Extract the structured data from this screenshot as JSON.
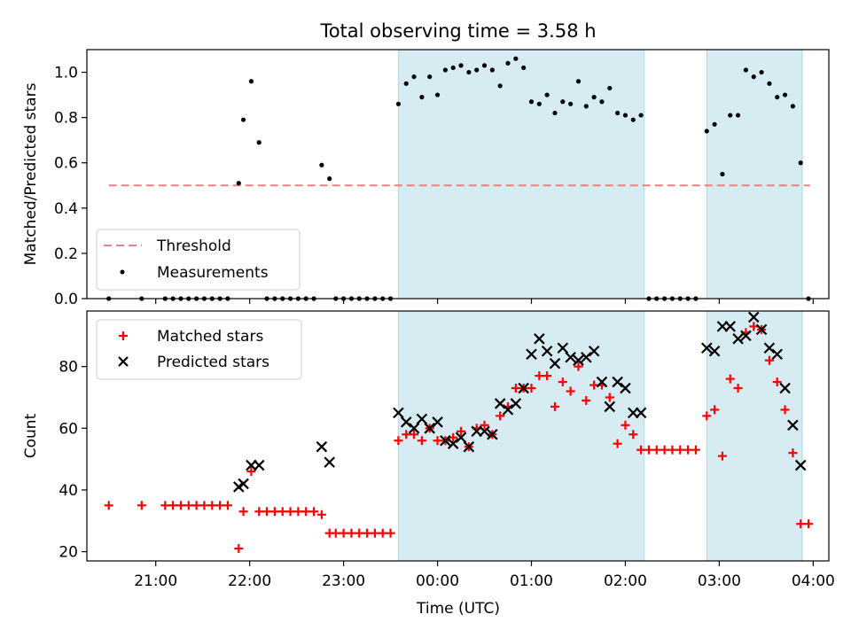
{
  "title": "Total observing time = 3.58 h",
  "chart_data": [
    {
      "type": "scatter",
      "ylabel": "Matched/Predicted stars",
      "ylim": [
        0,
        1.1
      ],
      "yticks": [
        0.0,
        0.2,
        0.4,
        0.6,
        0.8,
        1.0
      ],
      "ytick_labels": [
        "0.0",
        "0.2",
        "0.4",
        "0.6",
        "0.8",
        "1.0"
      ],
      "xlim": [
        "20:16",
        "04:10"
      ],
      "grid": false,
      "legend_position": "lower-left",
      "observing_windows": [
        {
          "start": "23:35",
          "end": "02:12"
        },
        {
          "start": "02:52",
          "end": "03:53"
        }
      ],
      "threshold": {
        "name": "Threshold",
        "value": 0.5,
        "x": [
          "20:30",
          "03:58"
        ],
        "color": "#f08080",
        "style": "dashed"
      },
      "series": [
        {
          "name": "Measurements",
          "marker": "dot",
          "color": "#000000",
          "x": [
            "20:30",
            "20:51",
            "21:06",
            "21:11",
            "21:16",
            "21:21",
            "21:26",
            "21:31",
            "21:36",
            "21:41",
            "21:46",
            "21:53",
            "21:56",
            "22:01",
            "22:06",
            "22:11",
            "22:16",
            "22:21",
            "22:26",
            "22:31",
            "22:36",
            "22:41",
            "22:46",
            "22:51",
            "22:55",
            "23:00",
            "23:05",
            "23:10",
            "23:15",
            "23:20",
            "23:25",
            "23:30",
            "23:35",
            "23:40",
            "23:45",
            "23:50",
            "23:55",
            "00:00",
            "00:05",
            "00:10",
            "00:15",
            "00:20",
            "00:25",
            "00:30",
            "00:35",
            "00:40",
            "00:45",
            "00:50",
            "00:55",
            "01:00",
            "01:05",
            "01:10",
            "01:15",
            "01:20",
            "01:25",
            "01:30",
            "01:35",
            "01:40",
            "01:45",
            "01:50",
            "01:55",
            "02:00",
            "02:05",
            "02:10",
            "02:15",
            "02:20",
            "02:25",
            "02:30",
            "02:35",
            "02:40",
            "02:45",
            "02:52",
            "02:57",
            "03:02",
            "03:07",
            "03:12",
            "03:17",
            "03:22",
            "03:27",
            "03:32",
            "03:37",
            "03:42",
            "03:47",
            "03:52",
            "03:57"
          ],
          "y": [
            0,
            0,
            0,
            0,
            0,
            0,
            0,
            0,
            0,
            0,
            0,
            0.51,
            0.79,
            0.96,
            0.69,
            0,
            0,
            0,
            0,
            0,
            0,
            0,
            0.59,
            0.53,
            0,
            0,
            0,
            0,
            0,
            0,
            0,
            0,
            0.86,
            0.95,
            0.98,
            0.89,
            0.98,
            0.9,
            1.01,
            1.02,
            1.03,
            1.0,
            1.01,
            1.03,
            1.01,
            0.94,
            1.04,
            1.06,
            1.02,
            0.87,
            0.86,
            0.9,
            0.82,
            0.87,
            0.86,
            0.96,
            0.85,
            0.89,
            0.87,
            0.93,
            0.82,
            0.81,
            0.79,
            0.81,
            0,
            0,
            0,
            0,
            0,
            0,
            0,
            0.74,
            0.77,
            0.55,
            0.81,
            0.81,
            1.01,
            0.98,
            1.0,
            0.95,
            0.89,
            0.9,
            0.85,
            0.6,
            0
          ]
        }
      ]
    },
    {
      "type": "scatter",
      "xlabel": "Time (UTC)",
      "ylabel": "Count",
      "ylim": [
        17,
        98
      ],
      "yticks": [
        20,
        40,
        60,
        80
      ],
      "ytick_labels": [
        "20",
        "40",
        "60",
        "80"
      ],
      "xlim": [
        "20:16",
        "04:10"
      ],
      "xtick_labels": [
        "21:00",
        "22:00",
        "23:00",
        "00:00",
        "01:00",
        "02:00",
        "03:00",
        "04:00"
      ],
      "grid": false,
      "legend_position": "upper-left",
      "observing_windows": [
        {
          "start": "23:35",
          "end": "02:12"
        },
        {
          "start": "02:52",
          "end": "03:53"
        }
      ],
      "series": [
        {
          "name": "Matched stars",
          "marker": "plus",
          "color": "#ff0000",
          "x": [
            "20:30",
            "20:51",
            "21:06",
            "21:11",
            "21:16",
            "21:21",
            "21:26",
            "21:31",
            "21:36",
            "21:41",
            "21:46",
            "21:53",
            "21:56",
            "22:01",
            "22:06",
            "22:11",
            "22:16",
            "22:21",
            "22:26",
            "22:31",
            "22:36",
            "22:41",
            "22:46",
            "22:51",
            "22:55",
            "23:00",
            "23:05",
            "23:10",
            "23:15",
            "23:20",
            "23:25",
            "23:30",
            "23:35",
            "23:40",
            "23:45",
            "23:50",
            "23:55",
            "00:00",
            "00:05",
            "00:10",
            "00:15",
            "00:20",
            "00:25",
            "00:30",
            "00:35",
            "00:40",
            "00:45",
            "00:50",
            "00:55",
            "01:00",
            "01:05",
            "01:10",
            "01:15",
            "01:20",
            "01:25",
            "01:30",
            "01:35",
            "01:40",
            "01:45",
            "01:50",
            "01:55",
            "02:00",
            "02:05",
            "02:10",
            "02:15",
            "02:20",
            "02:25",
            "02:30",
            "02:35",
            "02:40",
            "02:45",
            "02:52",
            "02:57",
            "03:02",
            "03:07",
            "03:12",
            "03:17",
            "03:22",
            "03:27",
            "03:32",
            "03:37",
            "03:42",
            "03:47",
            "03:52",
            "03:57"
          ],
          "y": [
            35,
            35,
            35,
            35,
            35,
            35,
            35,
            35,
            35,
            35,
            35,
            21,
            33,
            46,
            33,
            33,
            33,
            33,
            33,
            33,
            33,
            33,
            32,
            26,
            26,
            26,
            26,
            26,
            26,
            26,
            26,
            26,
            56,
            58,
            58,
            56,
            60,
            56,
            56,
            57,
            59,
            54,
            60,
            61,
            58,
            64,
            67,
            73,
            73,
            73,
            77,
            77,
            67,
            75,
            72,
            80,
            69,
            74,
            74,
            70,
            55,
            61,
            58,
            53,
            53,
            53,
            53,
            53,
            53,
            53,
            53,
            64,
            66,
            51,
            76,
            73,
            91,
            93,
            92,
            82,
            75,
            66,
            52,
            29,
            29
          ]
        },
        {
          "name": "Predicted stars",
          "marker": "x",
          "color": "#000000",
          "x": [
            "21:53",
            "21:56",
            "22:01",
            "22:06",
            "22:46",
            "22:51",
            "23:35",
            "23:40",
            "23:45",
            "23:50",
            "23:55",
            "00:00",
            "00:05",
            "00:10",
            "00:15",
            "00:20",
            "00:25",
            "00:30",
            "00:35",
            "00:40",
            "00:45",
            "00:50",
            "00:55",
            "01:00",
            "01:05",
            "01:10",
            "01:15",
            "01:20",
            "01:25",
            "01:30",
            "01:35",
            "01:40",
            "01:45",
            "01:50",
            "01:55",
            "02:00",
            "02:05",
            "02:10",
            "02:52",
            "02:57",
            "03:02",
            "03:07",
            "03:12",
            "03:17",
            "03:22",
            "03:27",
            "03:32",
            "03:37",
            "03:42",
            "03:47",
            "03:52"
          ],
          "y": [
            41,
            42,
            48,
            48,
            54,
            49,
            65,
            62,
            60,
            63,
            60,
            62,
            56,
            55,
            57,
            54,
            59,
            59,
            58,
            68,
            66,
            68,
            73,
            84,
            89,
            85,
            81,
            86,
            83,
            82,
            83,
            85,
            75,
            67,
            75,
            73,
            65,
            65,
            86,
            85,
            93,
            93,
            89,
            90,
            96,
            92,
            86,
            84,
            73,
            61,
            48
          ]
        }
      ]
    }
  ]
}
